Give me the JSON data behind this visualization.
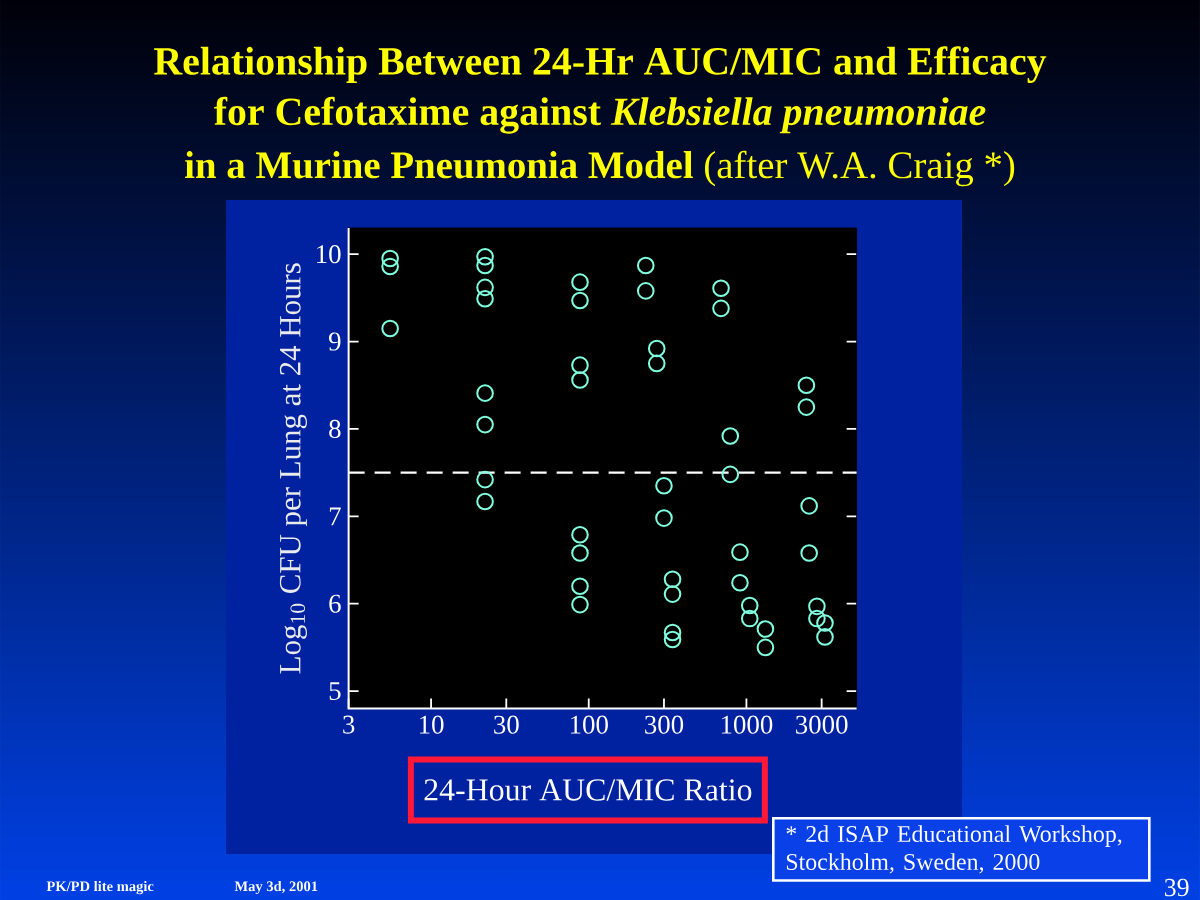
{
  "chart_data": {
    "type": "scatter",
    "title": "Relationship Between 24-Hr AUC/MIC and Efficacy for Cefotaxime against *Klebsiella pneumoniae*",
    "subtitle": "**in a Murine Pneumonia Model** (after W.A. Craig *)",
    "xlabel": "24-Hour AUC/MIC Ratio",
    "ylabel": "Log$_{10}$ CFU per Lung at 24 Hours",
    "annotations": [
      "* 2d ISAP Educational Workshop, Stockholm, Sweden, 2000",
      "PK/PD lite magic",
      "May 3d, 2001",
      "39"
    ],
    "series": [
      {
        "color": "#80ffe0",
        "x": [
          5.5,
          5.5,
          5.5,
          22,
          22,
          22,
          22,
          22,
          22,
          22,
          22,
          88,
          88,
          88,
          88,
          88,
          88,
          88,
          88,
          230,
          230,
          270,
          270,
          300,
          300,
          340,
          340,
          340,
          340,
          690,
          690,
          790,
          790,
          910,
          910,
          1050,
          1050,
          1320,
          1320,
          2400,
          2400,
          2500,
          2500,
          2800,
          2800,
          3150,
          3150
        ],
        "values": [
          9.95,
          9.86,
          9.15,
          9.97,
          9.87,
          9.62,
          9.49,
          8.41,
          8.05,
          7.42,
          7.17,
          9.68,
          9.47,
          8.73,
          8.56,
          6.79,
          6.58,
          6.2,
          5.99,
          9.87,
          9.58,
          8.92,
          8.75,
          7.35,
          6.98,
          6.28,
          6.11,
          5.67,
          5.59,
          9.61,
          9.38,
          7.92,
          7.48,
          6.59,
          6.24,
          5.98,
          5.83,
          5.71,
          5.5,
          8.5,
          8.25,
          7.12,
          6.58,
          5.97,
          5.83,
          5.78,
          5.62
        ]
      }
    ],
    "marker": "circle",
    "log": "x",
    "xlim": [
      3,
      5000
    ],
    "ylim": [
      4.8,
      10.3
    ],
    "xticks": [
      3,
      10,
      30,
      100,
      300,
      1000,
      3000
    ],
    "yticks": [
      5,
      6,
      7,
      8,
      9,
      10
    ],
    "ref_lines": [
      {
        "axis": "y",
        "value": 7.5,
        "color": "#ffffff",
        "line_style": "dashed"
      }
    ]
  }
}
